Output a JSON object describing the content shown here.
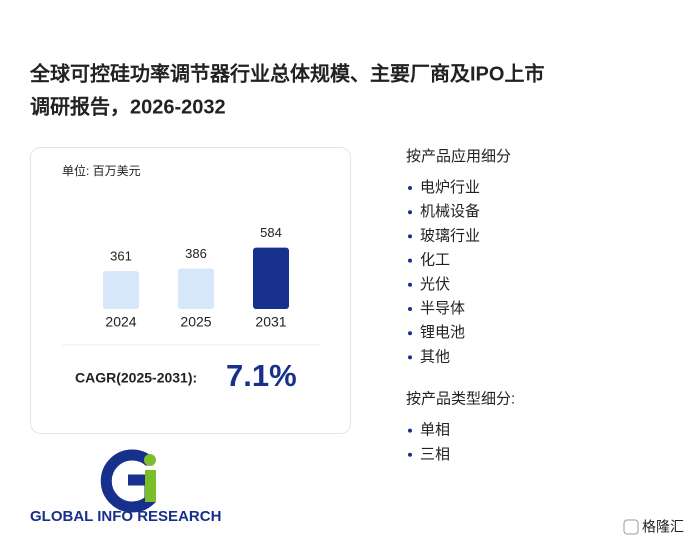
{
  "header": {
    "title_line1": "全球可控硅功率调节器行业总体规模、主要厂商及IPO上市",
    "title_line2": "调研报告，2026-2032"
  },
  "chart_data": {
    "type": "bar",
    "unit_label": "单位: 百万美元",
    "categories": [
      "2024",
      "2025",
      "2031"
    ],
    "values": [
      361,
      386,
      584
    ],
    "colors": [
      "#d5e7f9",
      "#d5e7f9",
      "#17308c"
    ]
  },
  "cagr": {
    "label": "CAGR(2025-2031):",
    "value": "7.1%"
  },
  "sections": [
    {
      "title": "按产品应用细分",
      "items": [
        "电炉行业",
        "机械设备",
        "玻璃行业",
        "化工",
        "光伏",
        "半导体",
        "锂电池",
        "其他"
      ]
    },
    {
      "title": "按产品类型细分:",
      "items": [
        "单相",
        "三相"
      ]
    }
  ],
  "logo": {
    "text": "GLOBAL INFO RESEARCH"
  },
  "badge": {
    "text": "格隆汇"
  }
}
